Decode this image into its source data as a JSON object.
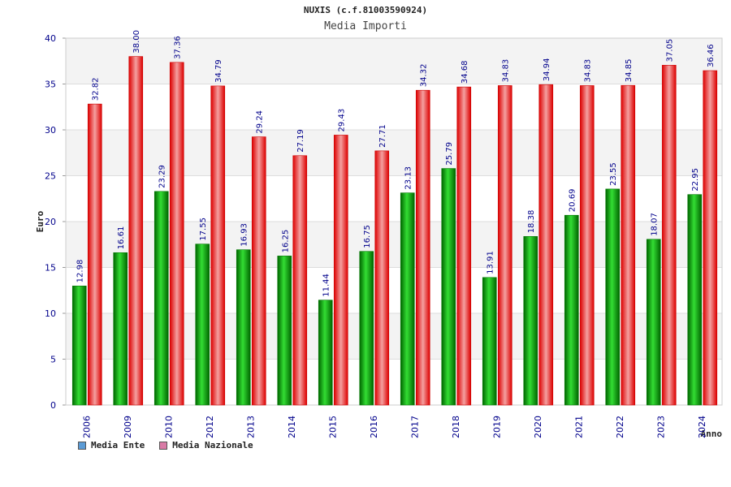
{
  "chart_data": {
    "type": "bar",
    "title": "NUXIS (c.f.81003590924)",
    "subtitle": "Media Importi",
    "xlabel": "Anno",
    "ylabel": "Euro",
    "ylim": [
      0,
      40
    ],
    "yticks": [
      0,
      5,
      10,
      15,
      20,
      25,
      30,
      35,
      40
    ],
    "categories": [
      "2006",
      "2009",
      "2010",
      "2012",
      "2013",
      "2014",
      "2015",
      "2016",
      "2017",
      "2018",
      "2019",
      "2020",
      "2021",
      "2022",
      "2023",
      "2024"
    ],
    "series": [
      {
        "name": "Media Ente",
        "color": "#22aa22",
        "legend_color": "#5b9bd5",
        "values": [
          12.98,
          16.61,
          23.29,
          17.55,
          16.93,
          16.25,
          11.44,
          16.75,
          23.13,
          25.79,
          13.91,
          18.38,
          20.69,
          23.55,
          18.07,
          22.95
        ],
        "labels": [
          "12.98",
          "16.61",
          "23.29",
          "17.55",
          "16.93",
          "16.25",
          "11.44",
          "16.75",
          "23.13",
          "25.79",
          "13.91",
          "18.38",
          "20.69",
          "23.55",
          "18.07",
          "22.95"
        ]
      },
      {
        "name": "Media Nazionale",
        "color": "#ee2222",
        "legend_color": "#d97ba6",
        "values": [
          32.82,
          38.0,
          37.36,
          34.79,
          29.24,
          27.19,
          29.43,
          27.71,
          34.32,
          34.68,
          34.83,
          34.94,
          34.83,
          34.85,
          37.05,
          36.46
        ],
        "labels": [
          "32.82",
          "38.00",
          "37.36",
          "34.79",
          "29.24",
          "27.19",
          "29.43",
          "27.71",
          "34.32",
          "34.68",
          "34.83",
          "34.94",
          "34.83",
          "34.85",
          "37.05",
          "36.46"
        ]
      }
    ],
    "grid": true,
    "legend_position": "bottom-left"
  }
}
